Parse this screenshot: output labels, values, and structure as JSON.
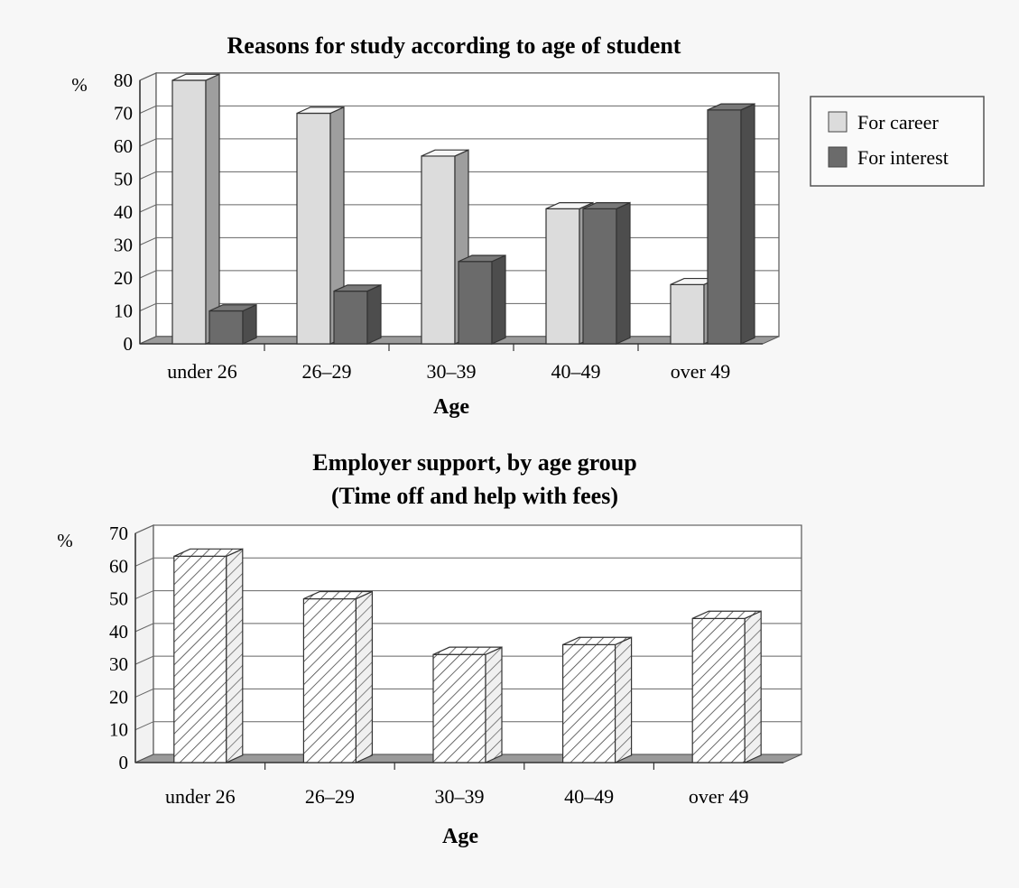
{
  "chart_data": [
    {
      "type": "bar",
      "title": "Reasons for study according to age of student",
      "xlabel": "Age",
      "ylabel": "%",
      "ylim": [
        0,
        80
      ],
      "yticks": [
        0,
        10,
        20,
        30,
        40,
        50,
        60,
        70,
        80
      ],
      "categories": [
        "under 26",
        "26–29",
        "30–39",
        "40–49",
        "over 49"
      ],
      "legend_position": "right",
      "grid": true,
      "series": [
        {
          "name": "For career",
          "values": [
            80,
            70,
            57,
            41,
            18
          ],
          "color": "#dcdcdc"
        },
        {
          "name": "For interest",
          "values": [
            10,
            16,
            25,
            41,
            71
          ],
          "color": "#6b6b6b"
        }
      ]
    },
    {
      "type": "bar",
      "title": "Employer support, by age group",
      "subtitle": "(Time off and help with fees)",
      "xlabel": "Age",
      "ylabel": "%",
      "ylim": [
        0,
        70
      ],
      "yticks": [
        0,
        10,
        20,
        30,
        40,
        50,
        60,
        70
      ],
      "categories": [
        "under 26",
        "26–29",
        "30–39",
        "40–49",
        "over 49"
      ],
      "grid": true,
      "fill": "hatched",
      "values": [
        63,
        50,
        33,
        36,
        44
      ]
    }
  ]
}
